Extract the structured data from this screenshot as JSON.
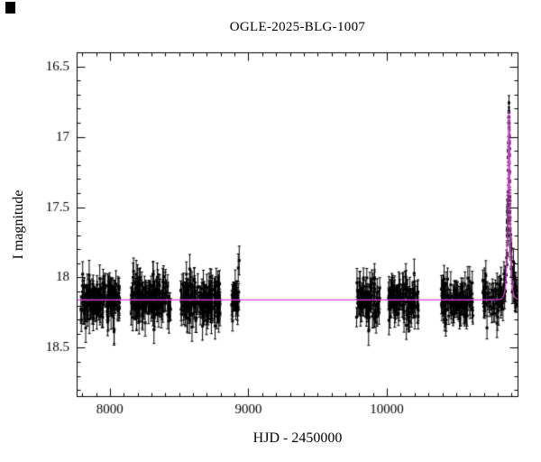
{
  "chart_data": {
    "type": "scatter",
    "title": "OGLE-2025-BLG-1007",
    "xlabel": "HJD - 2450000",
    "ylabel": "I magnitude",
    "xlim": [
      7760,
      10950
    ],
    "ylim": [
      18.85,
      16.4
    ],
    "y_axis_inverted": true,
    "grid": false,
    "legend": false,
    "x_major_ticks": [
      8000,
      9000,
      10000
    ],
    "x_minor_step": 100,
    "y_major_ticks": [
      16.5,
      17,
      17.5,
      18,
      18.5
    ],
    "y_minor_step": 0.1,
    "marker": "filled-square",
    "marker_color": "#000000",
    "errorbar_color": "#000000",
    "model_curve_color": "#ee44ee",
    "baseline_mag": 18.16,
    "baseline_scatter_sigma": 0.07,
    "peak_mag": 16.85,
    "peak_time_hjd": 10881,
    "microlens_model": {
      "type": "paczynski",
      "t0": 10881,
      "tE": 15,
      "u0": 0.3,
      "m0": 18.16
    },
    "seed": 77031,
    "observing_seasons": [
      {
        "t_start": 7790,
        "t_end": 8075,
        "n_points": 160
      },
      {
        "t_start": 8150,
        "t_end": 8445,
        "n_points": 165
      },
      {
        "t_start": 8510,
        "t_end": 8800,
        "n_points": 170
      },
      {
        "t_start": 8880,
        "t_end": 8935,
        "n_points": 26
      },
      {
        "t_start": 9780,
        "t_end": 9950,
        "n_points": 85
      },
      {
        "t_start": 10010,
        "t_end": 10230,
        "n_points": 110
      },
      {
        "t_start": 10390,
        "t_end": 10625,
        "n_points": 115
      },
      {
        "t_start": 10690,
        "t_end": 10940,
        "n_points": 100
      },
      {
        "t_start": 10868,
        "t_end": 10898,
        "n_points": 32
      }
    ]
  }
}
